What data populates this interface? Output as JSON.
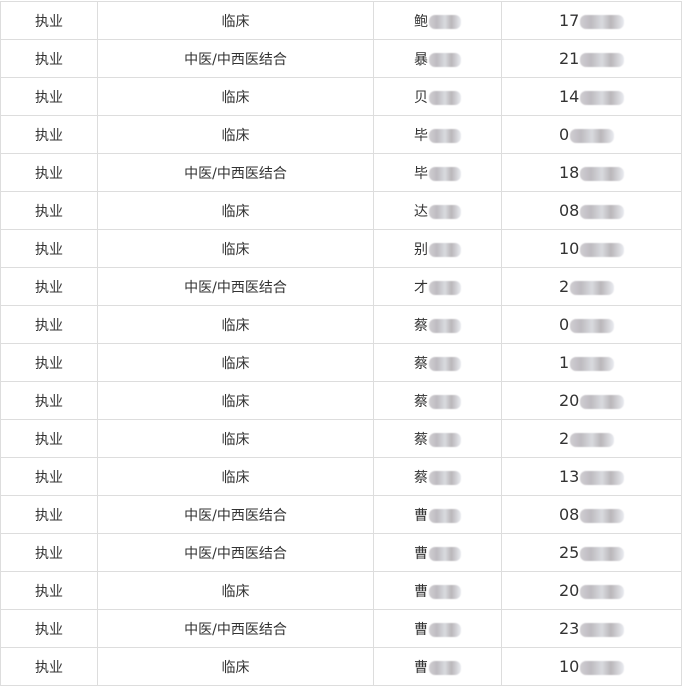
{
  "rows": [
    {
      "status": "执业",
      "category": "临床",
      "name": "鲍",
      "number": "17"
    },
    {
      "status": "执业",
      "category": "中医/中西医结合",
      "name": "暴",
      "number": "21"
    },
    {
      "status": "执业",
      "category": "临床",
      "name": "贝",
      "number": "14"
    },
    {
      "status": "执业",
      "category": "临床",
      "name": "毕",
      "number": "0"
    },
    {
      "status": "执业",
      "category": "中医/中西医结合",
      "name": "毕",
      "number": "18"
    },
    {
      "status": "执业",
      "category": "临床",
      "name": "达",
      "number": "08"
    },
    {
      "status": "执业",
      "category": "临床",
      "name": "别",
      "number": "10"
    },
    {
      "status": "执业",
      "category": "中医/中西医结合",
      "name": "才",
      "number": "2"
    },
    {
      "status": "执业",
      "category": "临床",
      "name": "蔡",
      "number": "0"
    },
    {
      "status": "执业",
      "category": "临床",
      "name": "蔡",
      "number": "1"
    },
    {
      "status": "执业",
      "category": "临床",
      "name": "蔡",
      "number": "20"
    },
    {
      "status": "执业",
      "category": "临床",
      "name": "蔡",
      "number": "2"
    },
    {
      "status": "执业",
      "category": "临床",
      "name": "蔡",
      "number": "13"
    },
    {
      "status": "执业",
      "category": "中医/中西医结合",
      "name": "曹",
      "number": "08"
    },
    {
      "status": "执业",
      "category": "中医/中西医结合",
      "name": "曹",
      "number": "25"
    },
    {
      "status": "执业",
      "category": "临床",
      "name": "曹",
      "number": "20"
    },
    {
      "status": "执业",
      "category": "中医/中西医结合",
      "name": "曹",
      "number": "23"
    },
    {
      "status": "执业",
      "category": "临床",
      "name": "曹",
      "number": "10"
    }
  ]
}
